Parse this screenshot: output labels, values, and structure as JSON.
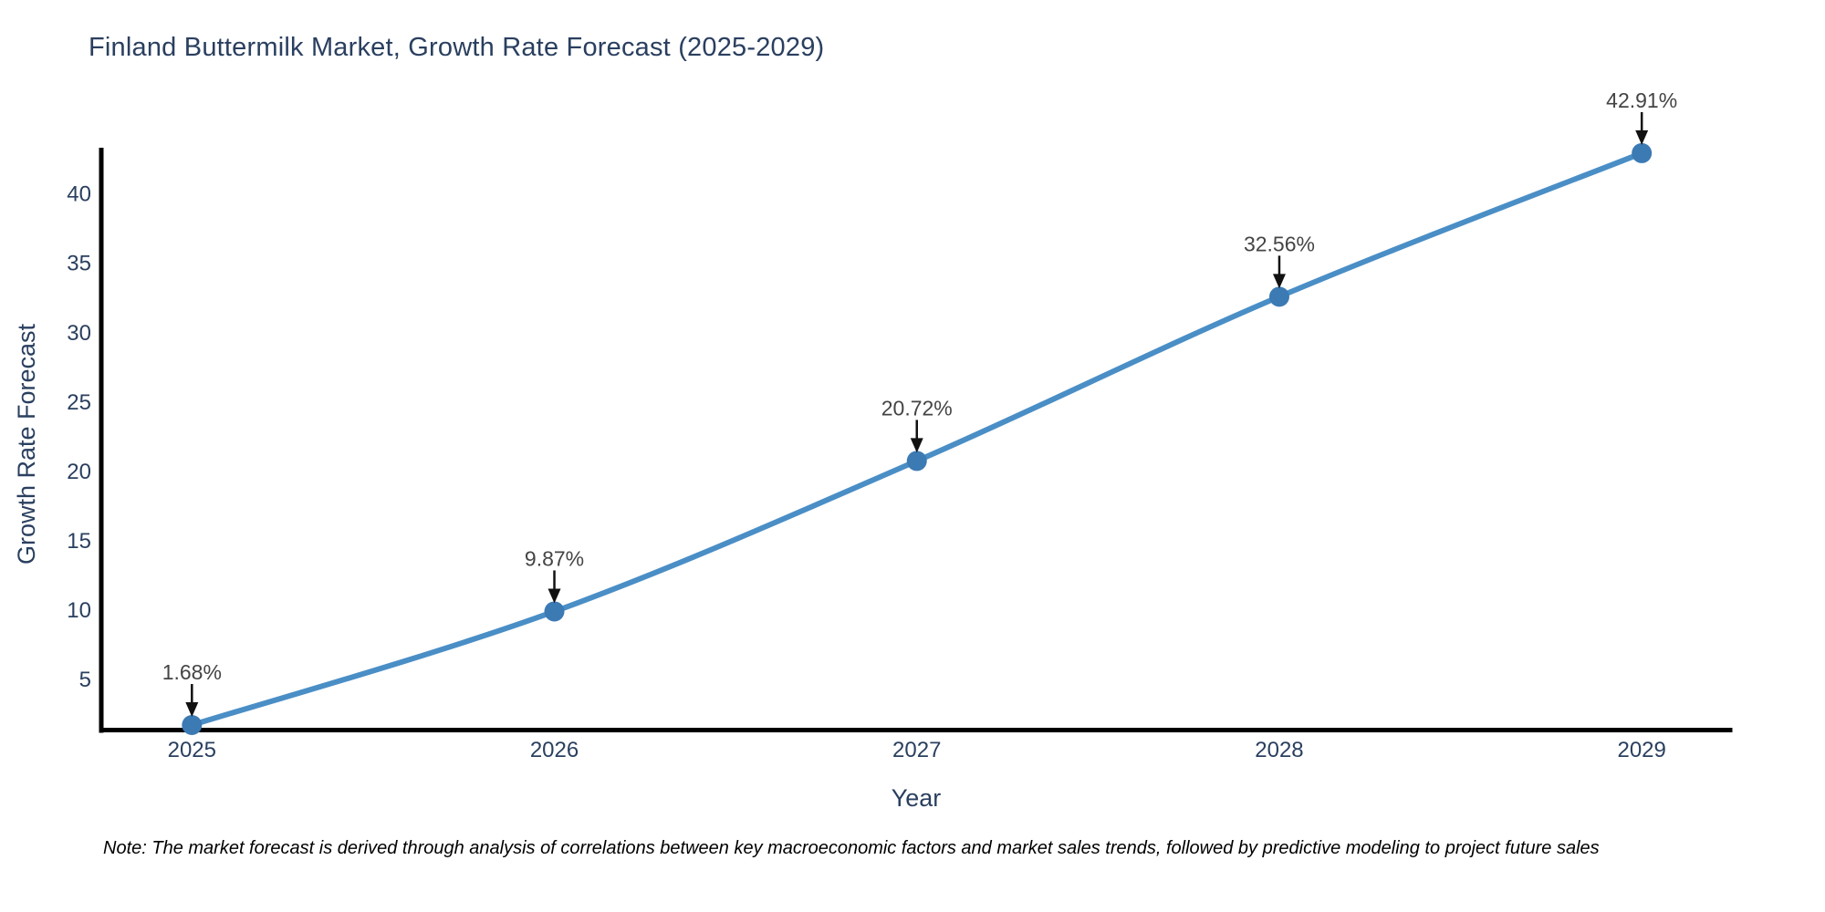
{
  "chart_data": {
    "type": "line",
    "title": "Finland Buttermilk Market, Growth Rate Forecast (2025-2029)",
    "xlabel": "Year",
    "ylabel": "Growth Rate Forecast",
    "x": [
      2025,
      2026,
      2027,
      2028,
      2029
    ],
    "series": [
      {
        "name": "Growth Rate Forecast",
        "values": [
          1.68,
          9.87,
          20.72,
          32.56,
          42.91
        ]
      }
    ],
    "point_labels": [
      "1.68%",
      "9.87%",
      "20.72%",
      "32.56%",
      "42.91%"
    ],
    "yticks": [
      5,
      10,
      15,
      20,
      25,
      30,
      35,
      40
    ],
    "xticks": [
      2025,
      2026,
      2027,
      2028,
      2029
    ],
    "xlim": [
      2024.75,
      2029.25
    ],
    "ylim": [
      1.32,
      43.3
    ],
    "grid": false,
    "legend_position": "none",
    "line_shape": "spline",
    "annotation_style": "value-label-with-down-arrow",
    "colors": {
      "line": "#4a8ec6",
      "marker": "#3c7ab4",
      "axis_line": "#000000",
      "title_text": "#2a3f5f",
      "tick_text": "#2a3f5f",
      "annotation_text": "#444444",
      "arrow": "#111111",
      "note_text": "#000000"
    },
    "note": "Note: The market forecast is derived through analysis of correlations between key macroeconomic factors and market sales trends, followed by predictive modeling to project future sales"
  }
}
